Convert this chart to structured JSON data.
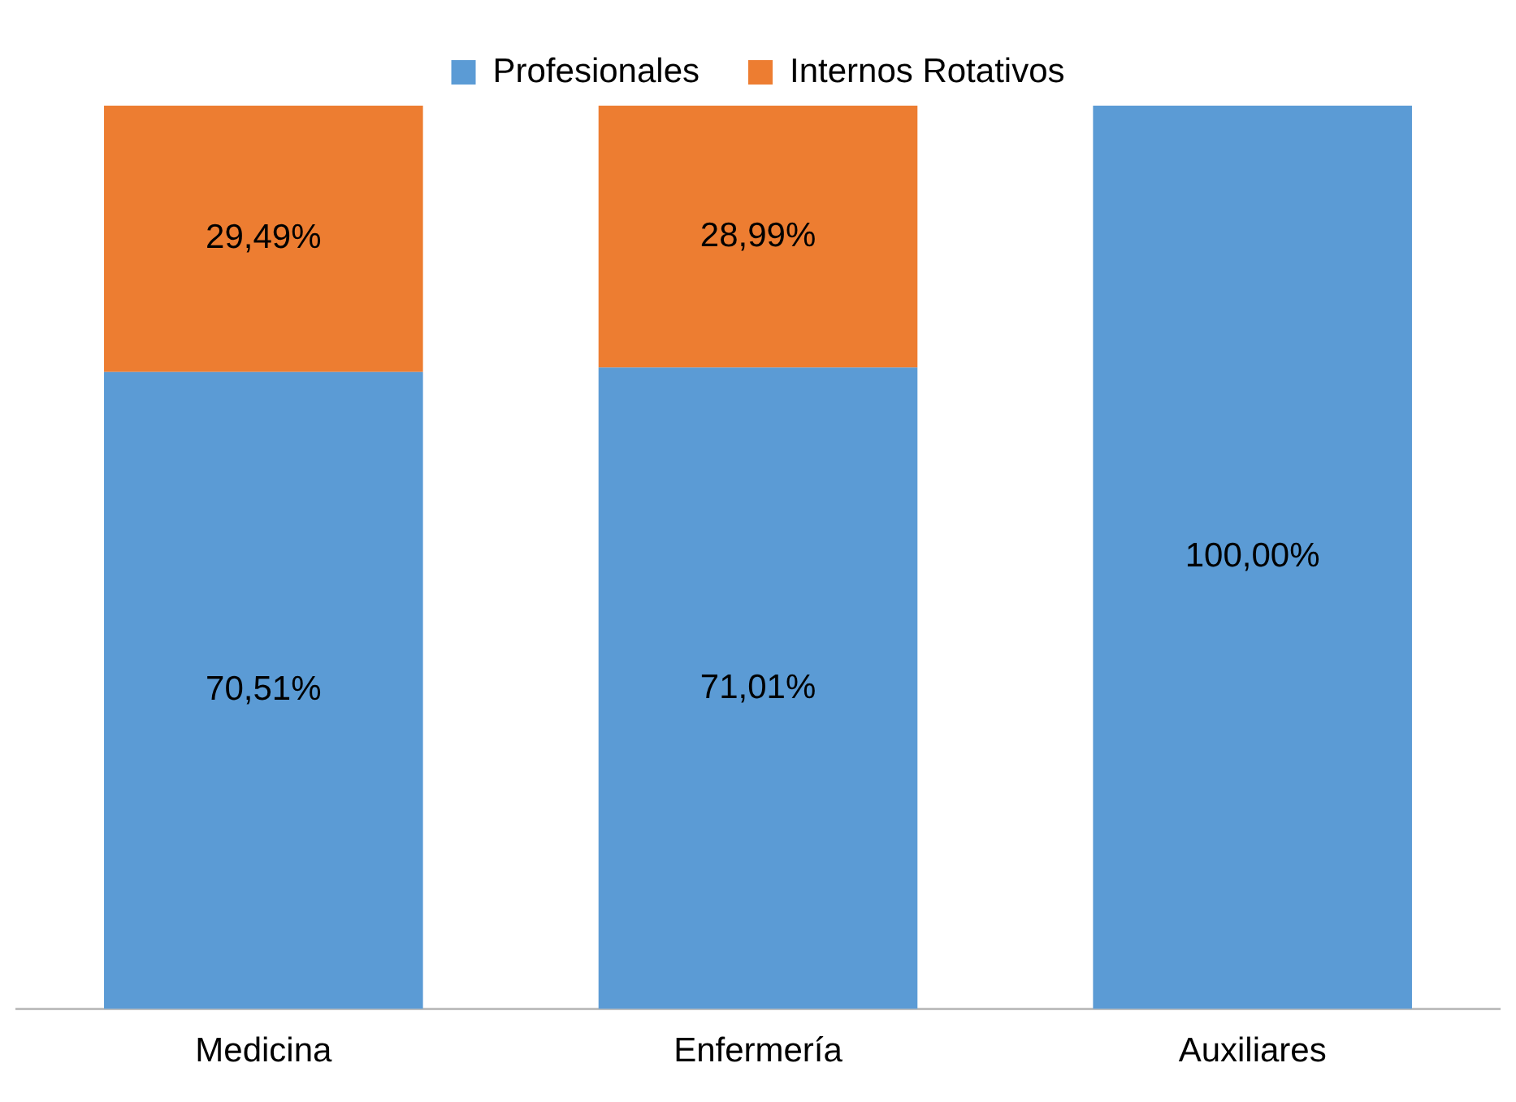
{
  "chart_data": {
    "type": "bar",
    "stacked": true,
    "categories": [
      "Medicina",
      "Enfermería",
      "Auxiliares"
    ],
    "series": [
      {
        "name": "Profesionales",
        "color": "#5b9bd5",
        "values": [
          70.51,
          71.01,
          100
        ],
        "value_labels": [
          "70,51%",
          "71,01%",
          "100,00%"
        ]
      },
      {
        "name": "Internos Rotativos",
        "color": "#ed7d31",
        "values": [
          29.49,
          28.99,
          null
        ],
        "value_labels": [
          "29,49%",
          "28,99%",
          null
        ]
      }
    ],
    "ylim": [
      0,
      100
    ],
    "tick_labels": "x",
    "grid": false,
    "legend": "top"
  }
}
